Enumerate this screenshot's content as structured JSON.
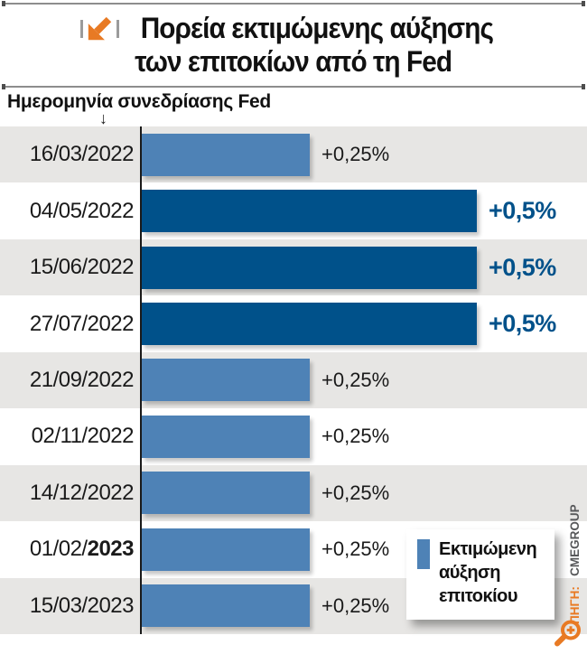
{
  "title": {
    "line1": "Πορεία εκτιμώμενης αύξησης",
    "line2": "των επιτοκίων από τη Fed"
  },
  "chart_data": {
    "type": "bar",
    "orientation": "horizontal",
    "title": "Πορεία εκτιμώμενης αύξησης των επιτοκίων από τη Fed",
    "column_header": "Ημερομηνία συνεδρίασης Fed",
    "categories": [
      "16/03/2022",
      "04/05/2022",
      "15/06/2022",
      "27/07/2022",
      "21/09/2022",
      "02/11/2022",
      "14/12/2022",
      "01/02/2023",
      "15/03/2023"
    ],
    "values": [
      0.25,
      0.5,
      0.5,
      0.5,
      0.25,
      0.25,
      0.25,
      0.25,
      0.25
    ],
    "value_labels": [
      "+0,25%",
      "+0,5%",
      "+0,5%",
      "+0,5%",
      "+0,25%",
      "+0,25%",
      "+0,25%",
      "+0,25%",
      "+0,25%"
    ],
    "unit": "percent",
    "xlim": [
      0,
      0.5
    ],
    "grid": false,
    "striped_rows": true,
    "bold_year_row": 7,
    "legend": {
      "label": "Εκτιμώμενη αύξηση επιτοκίου",
      "position": "bottom-right"
    },
    "source_prefix": "ΠΗΓΗ:",
    "source_name": "CMEGROUP",
    "colors": {
      "bar_small": "#4e82b6",
      "bar_large": "#00518a",
      "row_stripe": "#e7e6e4",
      "accent_orange": "#e87a24",
      "source_gray": "#58595b"
    }
  }
}
